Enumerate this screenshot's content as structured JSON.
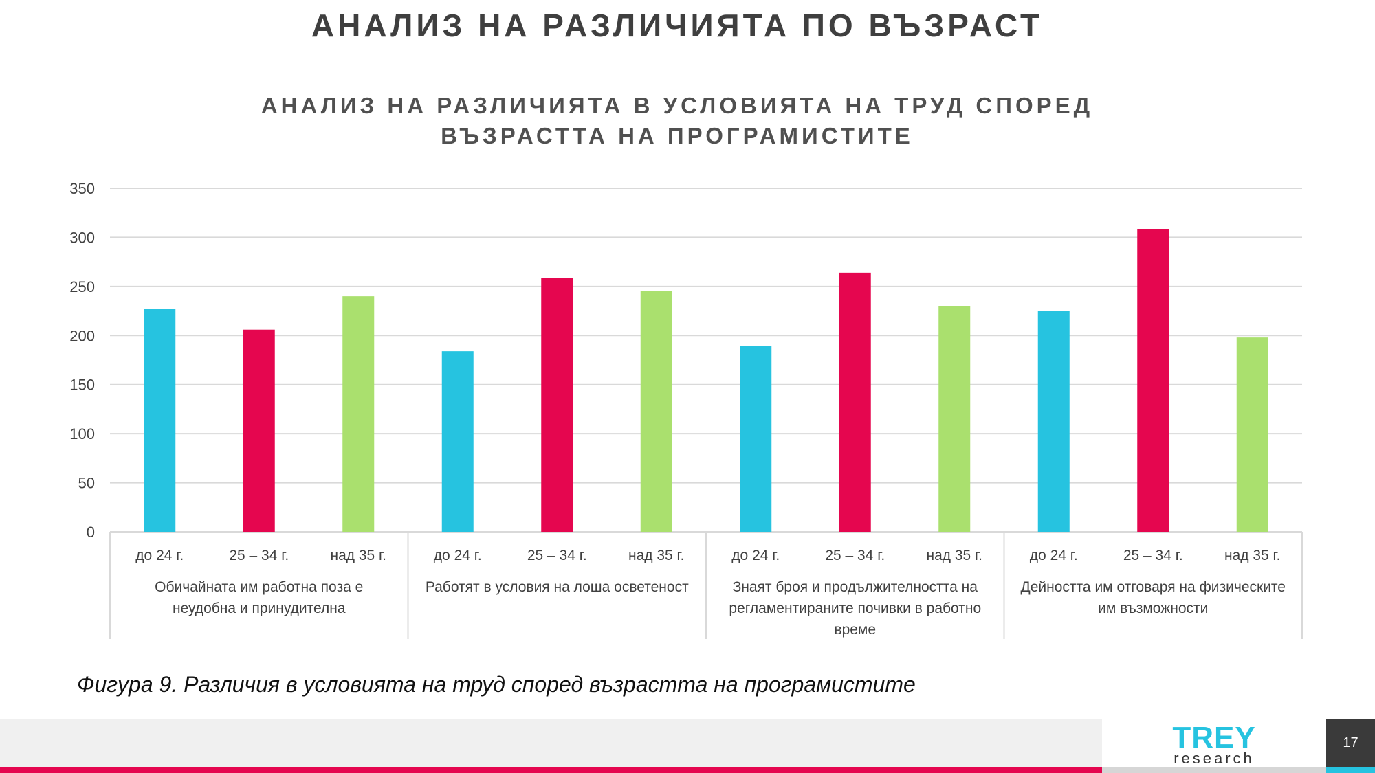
{
  "slide": {
    "title": "АНАЛИЗ НА РАЗЛИЧИЯТА ПО ВЪЗРАСТ",
    "caption": "Фигура 9. Различия в условията на труд според възрастта на програмистите",
    "page_number": "17",
    "logo": {
      "main": "TREY",
      "sub": "research"
    }
  },
  "chart_data": {
    "type": "bar",
    "title_lines": [
      "АНАЛИЗ НА РАЗЛИЧИЯТА В УСЛОВИЯТА НА ТРУД СПОРЕД",
      "ВЪЗРАСТТА НА ПРОГРАМИСТИТЕ"
    ],
    "ylim": [
      0,
      350
    ],
    "yticks": [
      0,
      50,
      100,
      150,
      200,
      250,
      300,
      350
    ],
    "grid": true,
    "legend": "none",
    "subcategories": [
      "до 24 г.",
      "25 – 34 г.",
      "над 35 г."
    ],
    "colors": [
      "#26c3e0",
      "#e5064f",
      "#aae06e"
    ],
    "groups": [
      {
        "label_lines": [
          "Обичайната им работна поза е",
          "неудобна и принудителна"
        ],
        "values": [
          227,
          206,
          240
        ]
      },
      {
        "label_lines": [
          "Работят в условия на лоша осветеност"
        ],
        "values": [
          184,
          259,
          245
        ]
      },
      {
        "label_lines": [
          "Знаят броя и продължителността на",
          "регламентираните почивки в работно",
          "време"
        ],
        "values": [
          189,
          264,
          230
        ]
      },
      {
        "label_lines": [
          "Дейността им отговаря на физическите",
          "им възможности"
        ],
        "values": [
          225,
          308,
          198
        ]
      }
    ]
  }
}
